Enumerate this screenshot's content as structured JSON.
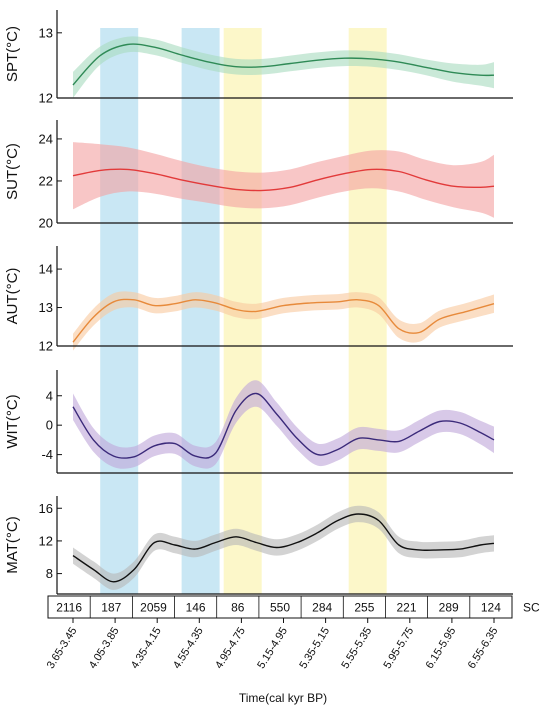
{
  "chart_data": {
    "type": "line",
    "xlabel": "Time(cal kyr BP)",
    "x_tick_labels": [
      "3.65-3.45",
      "4.05-3.85",
      "4.35-4.15",
      "4.55-4.35",
      "4.95-4.75",
      "5.15-4.95",
      "5.35-5.15",
      "5.55-5.35",
      "5.95-5.75",
      "6.15-5.95",
      "6.55-6.35"
    ],
    "sc": {
      "label": "SC",
      "values": [
        "2116",
        "187",
        "2059",
        "146",
        "86",
        "550",
        "284",
        "255",
        "221",
        "289",
        "124"
      ]
    },
    "x_domain": [
      3.45,
      6.55
    ],
    "bands": [
      {
        "start": 3.65,
        "end": 3.93,
        "color": "#bfe3f2"
      },
      {
        "start": 4.25,
        "end": 4.53,
        "color": "#bfe3f2"
      },
      {
        "start": 4.56,
        "end": 4.84,
        "color": "#fbf6bf"
      },
      {
        "start": 5.48,
        "end": 5.76,
        "color": "#fbf6bf"
      }
    ],
    "panels": [
      {
        "id": "spt",
        "ylabel": "SPT(°C)",
        "color": "#2f8a56",
        "fill": "#a9dcc0",
        "ylim": [
          12,
          13.35
        ],
        "ticks": [
          12,
          13
        ],
        "x": [
          3.45,
          3.65,
          3.85,
          4.05,
          4.25,
          4.45,
          4.65,
          4.85,
          5.05,
          5.25,
          5.45,
          5.65,
          5.85,
          6.05,
          6.25,
          6.45,
          6.55
        ],
        "y": [
          12.2,
          12.65,
          12.82,
          12.78,
          12.66,
          12.55,
          12.48,
          12.48,
          12.53,
          12.58,
          12.61,
          12.6,
          12.55,
          12.47,
          12.39,
          12.35,
          12.35
        ],
        "err": [
          0.2,
          0.14,
          0.12,
          0.12,
          0.12,
          0.12,
          0.12,
          0.12,
          0.12,
          0.12,
          0.12,
          0.12,
          0.12,
          0.12,
          0.14,
          0.16,
          0.2
        ]
      },
      {
        "id": "sut",
        "ylabel": "SUT(°C)",
        "color": "#e23a3a",
        "fill": "#f3a3a3",
        "ylim": [
          20,
          24.9
        ],
        "ticks": [
          20,
          22,
          24
        ],
        "x": [
          3.45,
          3.65,
          3.85,
          4.05,
          4.25,
          4.45,
          4.65,
          4.85,
          5.05,
          5.25,
          5.45,
          5.65,
          5.85,
          6.05,
          6.25,
          6.45,
          6.55
        ],
        "y": [
          22.25,
          22.5,
          22.55,
          22.35,
          22.05,
          21.8,
          21.6,
          21.55,
          21.7,
          22.05,
          22.35,
          22.55,
          22.45,
          22.05,
          21.75,
          21.7,
          21.75
        ],
        "err": [
          1.6,
          1.25,
          1.05,
          0.95,
          0.9,
          0.85,
          0.85,
          0.85,
          0.85,
          0.85,
          0.85,
          0.9,
          0.95,
          0.95,
          1.0,
          1.2,
          1.5
        ]
      },
      {
        "id": "aut",
        "ylabel": "AUT(°C)",
        "color": "#e78a3b",
        "fill": "#f8c9a0",
        "ylim": [
          12,
          14.6
        ],
        "ticks": [
          12,
          13,
          14
        ],
        "x": [
          3.45,
          3.6,
          3.75,
          3.9,
          4.05,
          4.2,
          4.35,
          4.5,
          4.65,
          4.8,
          5.0,
          5.2,
          5.4,
          5.55,
          5.7,
          5.85,
          6.0,
          6.15,
          6.35,
          6.55
        ],
        "y": [
          12.1,
          12.75,
          13.15,
          13.2,
          13.05,
          13.1,
          13.2,
          13.12,
          12.95,
          12.9,
          13.05,
          13.12,
          13.15,
          13.2,
          13.05,
          12.45,
          12.35,
          12.7,
          12.9,
          13.1
        ],
        "err": [
          0.22,
          0.22,
          0.22,
          0.2,
          0.2,
          0.2,
          0.2,
          0.2,
          0.2,
          0.2,
          0.2,
          0.2,
          0.2,
          0.2,
          0.22,
          0.24,
          0.24,
          0.22,
          0.22,
          0.24
        ]
      },
      {
        "id": "wit",
        "ylabel": "WIT(°C)",
        "color": "#3b2a7a",
        "fill": "#c0a8da",
        "ylim": [
          -6.5,
          7.5
        ],
        "ticks": [
          -4,
          0,
          4
        ],
        "x": [
          3.45,
          3.6,
          3.75,
          3.9,
          4.05,
          4.2,
          4.35,
          4.5,
          4.65,
          4.8,
          4.95,
          5.1,
          5.25,
          5.4,
          5.55,
          5.7,
          5.85,
          6.0,
          6.15,
          6.3,
          6.45,
          6.55
        ],
        "y": [
          2.5,
          -2.0,
          -4.2,
          -4.3,
          -2.8,
          -2.5,
          -4.2,
          -3.8,
          2.0,
          4.3,
          1.5,
          -1.8,
          -4.0,
          -3.3,
          -1.8,
          -2.0,
          -2.2,
          -0.8,
          0.5,
          0.3,
          -1.0,
          -2.0
        ],
        "err": [
          1.8,
          1.6,
          1.5,
          1.4,
          1.4,
          1.4,
          1.4,
          1.5,
          1.7,
          1.8,
          1.6,
          1.5,
          1.5,
          1.5,
          1.5,
          1.5,
          1.5,
          1.5,
          1.5,
          1.5,
          1.6,
          1.8
        ]
      },
      {
        "id": "mat",
        "ylabel": "MAT(°C)",
        "color": "#111111",
        "fill": "#b8b8b8",
        "ylim": [
          5.5,
          17.5
        ],
        "ticks": [
          8,
          12,
          16
        ],
        "x": [
          3.45,
          3.6,
          3.75,
          3.9,
          4.05,
          4.2,
          4.35,
          4.5,
          4.65,
          4.8,
          4.95,
          5.1,
          5.25,
          5.4,
          5.55,
          5.7,
          5.85,
          6.0,
          6.15,
          6.3,
          6.45,
          6.55
        ],
        "y": [
          10.2,
          8.5,
          7.0,
          8.5,
          11.8,
          11.5,
          11.0,
          11.8,
          12.5,
          11.8,
          11.2,
          11.8,
          13.0,
          14.5,
          15.3,
          14.5,
          11.5,
          10.9,
          10.9,
          11.0,
          11.5,
          11.7
        ],
        "err": [
          1.0,
          1.0,
          1.0,
          1.0,
          1.0,
          1.0,
          1.0,
          1.0,
          1.0,
          1.0,
          1.0,
          1.0,
          1.0,
          1.0,
          1.0,
          1.0,
          1.0,
          1.0,
          1.0,
          1.0,
          1.0,
          1.0
        ]
      }
    ]
  }
}
